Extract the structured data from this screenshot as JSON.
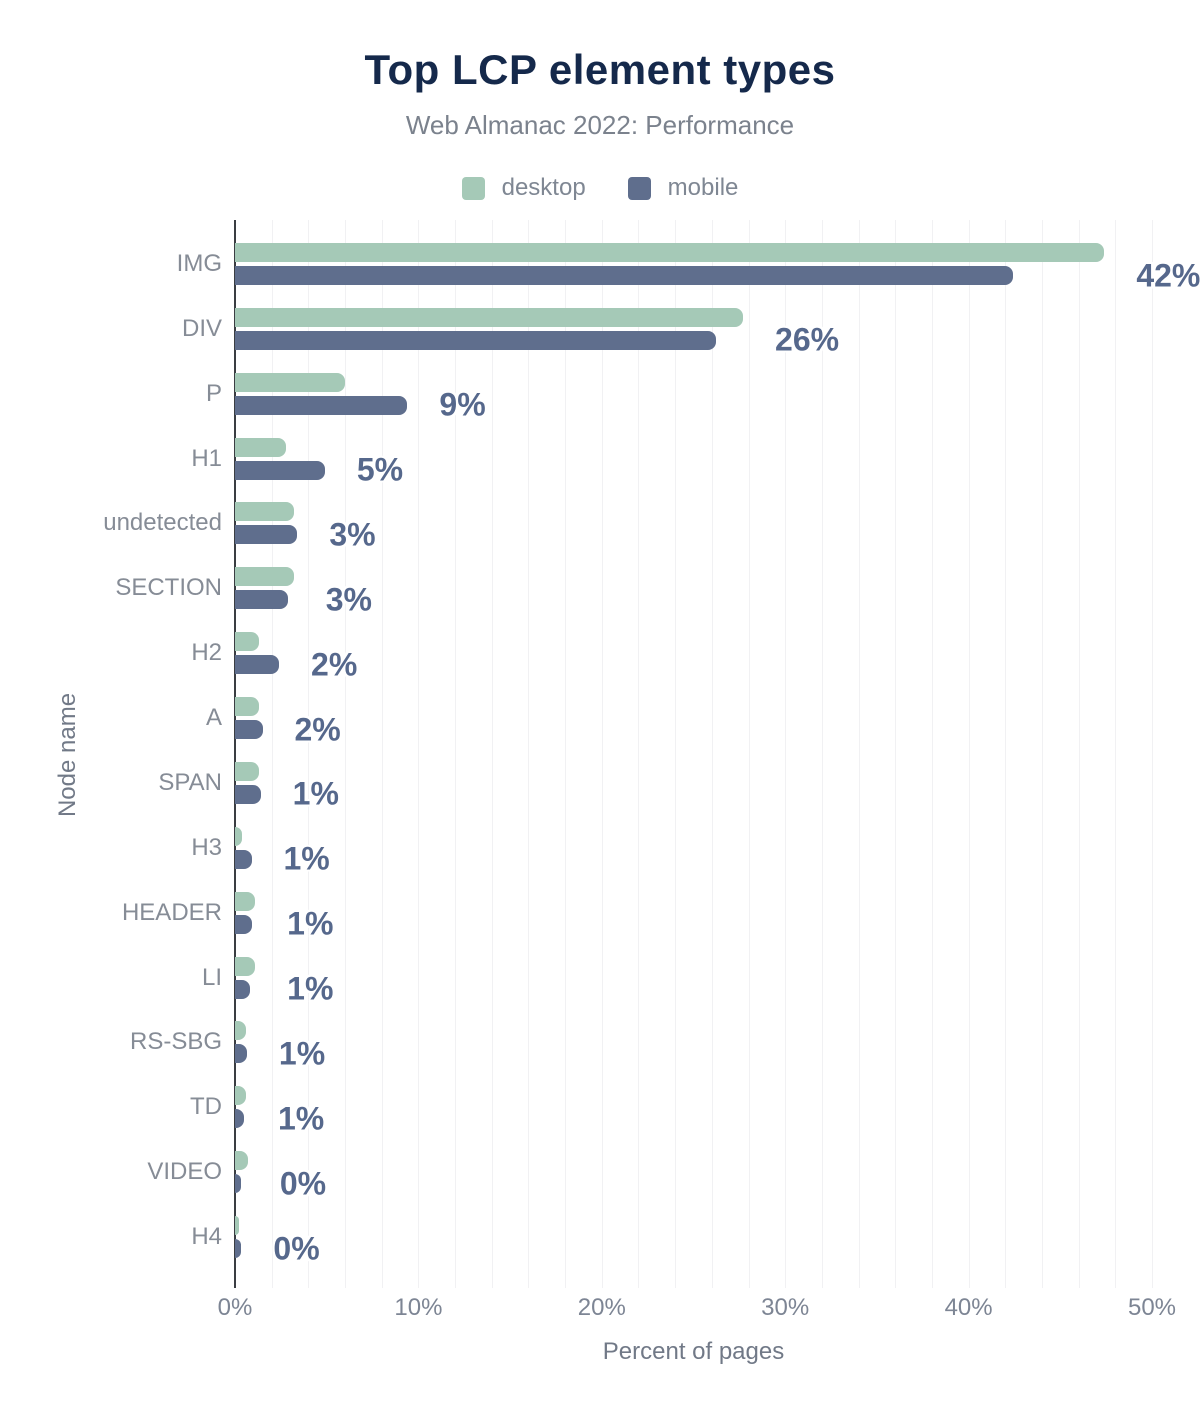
{
  "chart_data": {
    "type": "bar",
    "orientation": "horizontal",
    "title": "Top LCP element types",
    "subtitle": "Web Almanac 2022: Performance",
    "xlabel": "Percent of pages",
    "ylabel": "Node name",
    "xlim": [
      0,
      50
    ],
    "x_ticks": [
      "0%",
      "10%",
      "20%",
      "30%",
      "40%",
      "50%"
    ],
    "grid_step_percent": 2,
    "grid": "on",
    "legend_position": "top-center",
    "categories": [
      "IMG",
      "DIV",
      "P",
      "H1",
      "undetected",
      "SECTION",
      "H2",
      "A",
      "SPAN",
      "H3",
      "HEADER",
      "LI",
      "RS-SBG",
      "TD",
      "VIDEO",
      "H4"
    ],
    "series": [
      {
        "name": "desktop",
        "color": "#a5c9b7",
        "values": [
          47.4,
          27.7,
          6.0,
          2.8,
          3.2,
          3.2,
          1.3,
          1.3,
          1.3,
          0.4,
          1.1,
          1.1,
          0.6,
          0.6,
          0.7,
          0.2
        ]
      },
      {
        "name": "mobile",
        "color": "#5f6e8d",
        "values": [
          42.4,
          26.2,
          9.4,
          4.9,
          3.4,
          2.9,
          2.4,
          1.5,
          1.4,
          0.9,
          0.9,
          0.8,
          0.65,
          0.5,
          0.3,
          0.35
        ]
      }
    ],
    "value_labels": [
      "42%",
      "26%",
      "9%",
      "5%",
      "3%",
      "3%",
      "2%",
      "2%",
      "1%",
      "1%",
      "1%",
      "1%",
      "1%",
      "1%",
      "0%",
      "0%"
    ],
    "value_labels_series": "mobile"
  },
  "colors": {
    "title": "#15294b",
    "subtitle": "#7b828d",
    "value_label": "#56688c",
    "category_label": "#868c96",
    "tick_label": "#7d8594",
    "axis_line": "#3a3d42",
    "gridline": "#f1f1f3",
    "background": "#ffffff"
  }
}
